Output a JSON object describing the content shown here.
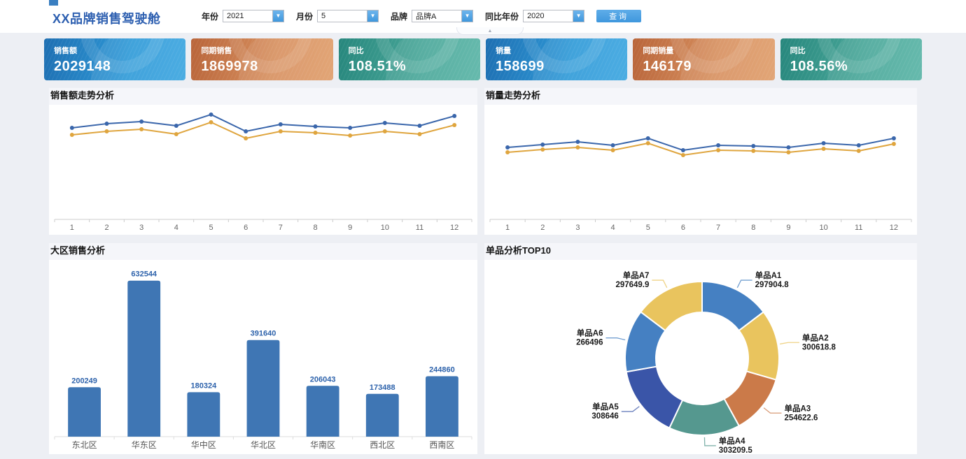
{
  "header": {
    "title": "XX品牌销售驾驶舱",
    "filters": [
      {
        "label": "年份",
        "value": "2021"
      },
      {
        "label": "月份",
        "value": "5"
      },
      {
        "label": "品牌",
        "value": "品牌A"
      },
      {
        "label": "同比年份",
        "value": "2020"
      }
    ],
    "query_label": "查询"
  },
  "cards": [
    {
      "label": "销售额",
      "value": "2029148",
      "theme": "blue"
    },
    {
      "label": "同期销售",
      "value": "1869978",
      "theme": "orange"
    },
    {
      "label": "同比",
      "value": "108.51%",
      "theme": "teal"
    },
    {
      "label": "销量",
      "value": "158699",
      "theme": "blue"
    },
    {
      "label": "同期销量",
      "value": "146179",
      "theme": "orange"
    },
    {
      "label": "同比",
      "value": "108.56%",
      "theme": "teal"
    }
  ],
  "sections": {
    "sales_trend": {
      "title": "销售额走势分析"
    },
    "volume_trend": {
      "title": "销量走势分析"
    },
    "region_sales": {
      "title": "大区销售分析"
    },
    "top_products": {
      "title": "单品分析TOP10"
    }
  },
  "colors": {
    "line_current": "#3a66ab",
    "line_previous": "#dfa53e",
    "bar": "#3f76b4",
    "bar_label": "#2d62ab",
    "axis_line": "#cccccc",
    "axis_text": "#666666"
  },
  "chart_data": [
    {
      "id": "sales-trend",
      "type": "line",
      "title": "销售额走势分析",
      "x": [
        1,
        2,
        3,
        4,
        5,
        6,
        7,
        8,
        9,
        10,
        11,
        12
      ],
      "ylim": [
        0,
        200000
      ],
      "grid": false,
      "legend": "none",
      "series": [
        {
          "name": "current_year",
          "color": "#3a66ab",
          "values": [
            159800,
            167000,
            170700,
            163400,
            183000,
            153700,
            165900,
            162200,
            159800,
            168300,
            163400,
            180500
          ]
        },
        {
          "name": "comparison_year",
          "color": "#dfa53e",
          "values": [
            147600,
            153700,
            157300,
            148800,
            169500,
            141500,
            153700,
            151200,
            146300,
            153700,
            148800,
            164600
          ]
        }
      ]
    },
    {
      "id": "volume-trend",
      "type": "line",
      "title": "销量走势分析",
      "x": [
        1,
        2,
        3,
        4,
        5,
        6,
        7,
        8,
        9,
        10,
        11,
        12
      ],
      "ylim": [
        0,
        20000
      ],
      "grid": false,
      "legend": "none",
      "series": [
        {
          "name": "current_year",
          "color": "#3a66ab",
          "values": [
            12560,
            13050,
            13540,
            12930,
            14150,
            12070,
            12930,
            12800,
            12560,
            13290,
            12930,
            14150
          ]
        },
        {
          "name": "comparison_year",
          "color": "#dfa53e",
          "values": [
            11710,
            12200,
            12560,
            12070,
            13290,
            11220,
            12070,
            11950,
            11710,
            12320,
            11950,
            13170
          ]
        }
      ]
    },
    {
      "id": "region-sales",
      "type": "bar",
      "title": "大区销售分析",
      "categories": [
        "东北区",
        "华东区",
        "华中区",
        "华北区",
        "华南区",
        "西北区",
        "西南区"
      ],
      "values": [
        200249,
        632544,
        180324,
        391640,
        206043,
        173488,
        244860
      ],
      "ylim": [
        0,
        660000
      ],
      "bar_color": "#3f76b4",
      "label_color": "#2d62ab"
    },
    {
      "id": "top-products",
      "type": "pie",
      "title": "单品分析TOP10",
      "donut": true,
      "inner_radius_ratio": 0.6,
      "slices": [
        {
          "name": "单品A1",
          "value": 297904.8,
          "color": "#4580c2"
        },
        {
          "name": "单品A2",
          "value": 300618.8,
          "color": "#e9c45e"
        },
        {
          "name": "单品A3",
          "value": 254622.6,
          "color": "#cb7a49"
        },
        {
          "name": "单品A4",
          "value": 303209.5,
          "color": "#55988f"
        },
        {
          "name": "单品A5",
          "value": 308646,
          "color": "#3a55a8"
        },
        {
          "name": "单品A6",
          "value": 266496,
          "color": "#4580c2"
        },
        {
          "name": "单品A7",
          "value": 297649.9,
          "color": "#e9c45e"
        }
      ]
    }
  ]
}
